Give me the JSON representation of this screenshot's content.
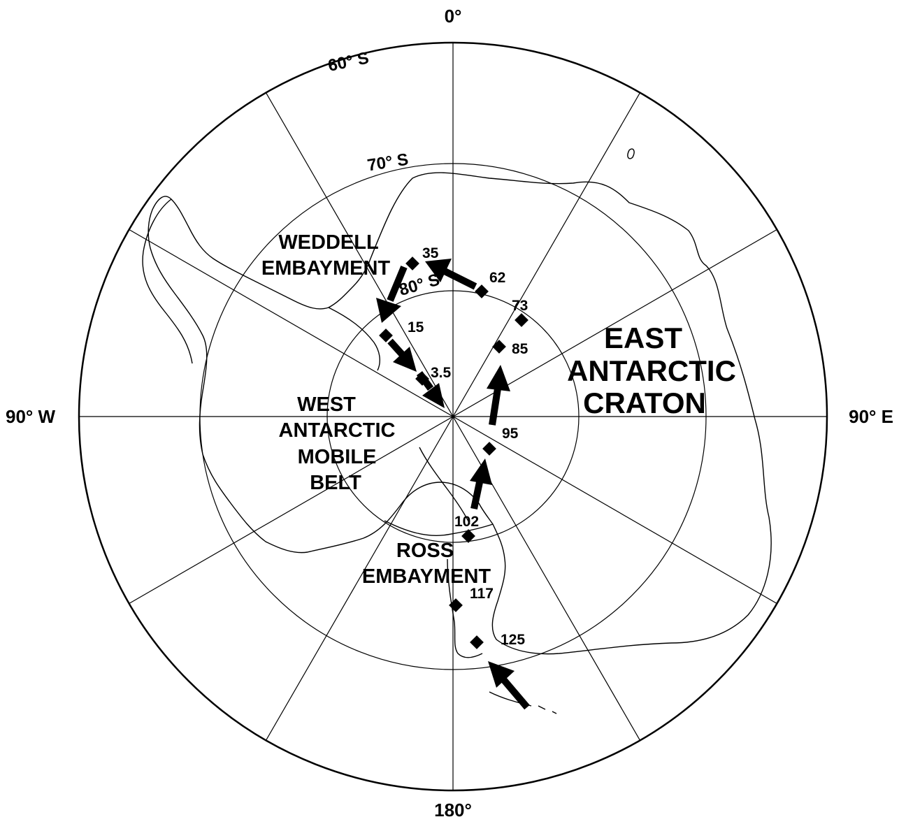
{
  "map": {
    "meridian_labels": {
      "top": "0°",
      "right": "90° E",
      "bottom": "180°",
      "left": "90° W"
    },
    "latitude_labels": [
      "60° S",
      "70° S",
      "80° S"
    ],
    "region_labels": {
      "weddell": [
        "WEDDELL",
        "EMBAYMENT"
      ],
      "west_antarctic": [
        "WEST",
        "ANTARCTIC",
        "MOBILE",
        "BELT"
      ],
      "ross": [
        "ROSS",
        "EMBAYMENT"
      ],
      "east_antarctic": [
        "EAST",
        "ANTARCTIC",
        "CRATON"
      ]
    },
    "pole_positions": [
      {
        "age": "3.5"
      },
      {
        "age": "15"
      },
      {
        "age": "35"
      },
      {
        "age": "62"
      },
      {
        "age": "73"
      },
      {
        "age": "85"
      },
      {
        "age": "95"
      },
      {
        "age": "102"
      },
      {
        "age": "117"
      },
      {
        "age": "125"
      }
    ],
    "colors": {
      "ink": "#000000",
      "background": "#ffffff"
    }
  }
}
